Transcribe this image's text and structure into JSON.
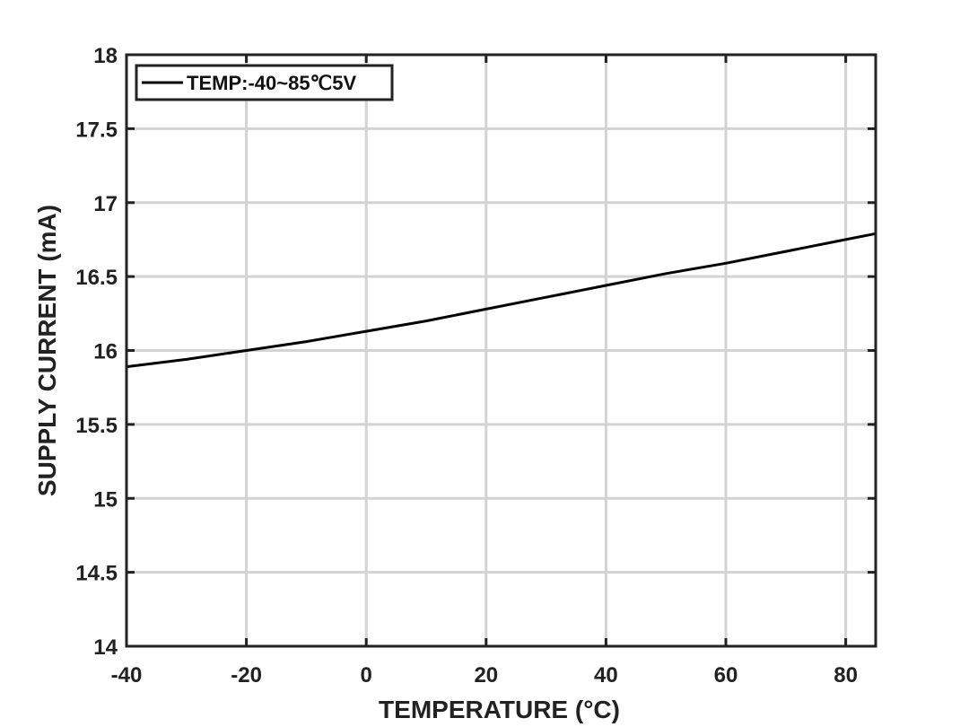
{
  "chart_data": {
    "type": "line",
    "title": "",
    "xlabel": "TEMPERATURE (°C)",
    "ylabel": "SUPPLY CURRENT (mA)",
    "xlim": [
      -40,
      85
    ],
    "ylim": [
      14,
      18
    ],
    "x_ticks": [
      -40,
      -20,
      0,
      20,
      40,
      60,
      80
    ],
    "x_tick_labels": [
      "-40",
      "-20",
      "0",
      "20",
      "40",
      "60",
      "80"
    ],
    "y_ticks": [
      14,
      14.5,
      15,
      15.5,
      16,
      16.5,
      17,
      17.5,
      18
    ],
    "y_tick_labels": [
      "14",
      "14.5",
      "15",
      "15.5",
      "16",
      "16.5",
      "17",
      "17.5",
      "18"
    ],
    "grid": true,
    "legend_position": "top-left",
    "series": [
      {
        "name": "TEMP:-40~85℃5V",
        "color": "#000000",
        "x": [
          -40,
          -30,
          -20,
          -10,
          0,
          10,
          20,
          30,
          40,
          50,
          60,
          70,
          80,
          85
        ],
        "y": [
          15.89,
          15.94,
          16.0,
          16.06,
          16.13,
          16.2,
          16.28,
          16.36,
          16.44,
          16.52,
          16.59,
          16.67,
          16.75,
          16.79
        ]
      }
    ]
  }
}
